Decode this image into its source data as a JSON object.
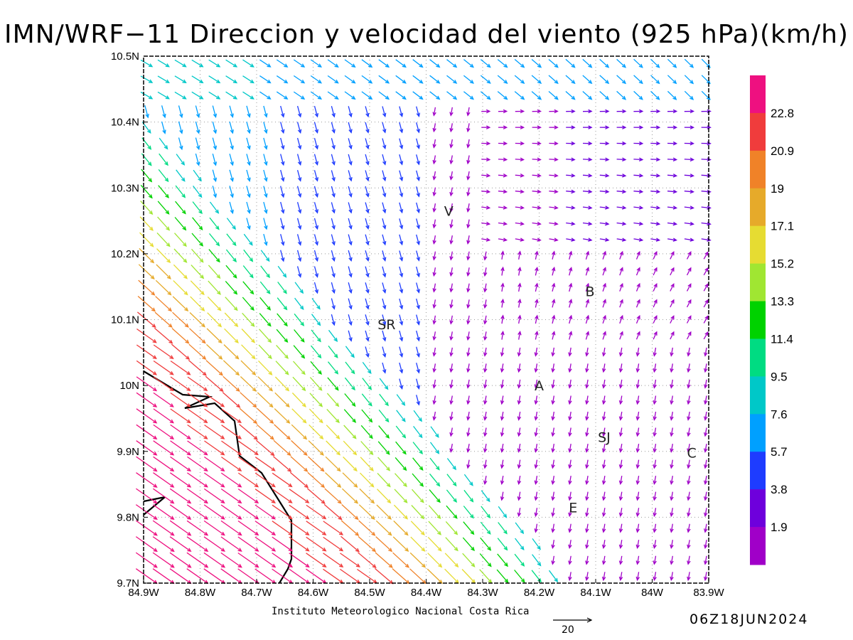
{
  "title": "IMN/WRF−11 Direccion y velocidad del viento (925 hPa)(km/h)",
  "credit": "Instituto Meteorologico Nacional Costa Rica",
  "timestamp": "06Z18JUN2024",
  "reference_vector_label": "20",
  "cities": [
    {
      "label": "V",
      "lon": -84.36,
      "lat": 10.265
    },
    {
      "label": "B",
      "lon": -84.11,
      "lat": 10.143
    },
    {
      "label": "SR",
      "lon": -84.47,
      "lat": 10.093
    },
    {
      "label": "A",
      "lon": -84.2,
      "lat": 10.0
    },
    {
      "label": "SJ",
      "lon": -84.085,
      "lat": 9.922
    },
    {
      "label": "C",
      "lon": -83.93,
      "lat": 9.898
    },
    {
      "label": "E",
      "lon": -84.14,
      "lat": 9.815
    }
  ],
  "colorbar": {
    "labels": [
      "22.8",
      "20.9",
      "19",
      "17.1",
      "15.2",
      "13.3",
      "11.4",
      "9.5",
      "7.6",
      "5.7",
      "3.8",
      "1.9"
    ],
    "colors": [
      "#ee1080",
      "#f03c3c",
      "#f08228",
      "#e6aa2a",
      "#e6dc32",
      "#a0e632",
      "#00d200",
      "#00dc82",
      "#00c8c8",
      "#00a0ff",
      "#1e3cff",
      "#6e00dc",
      "#a000c8"
    ]
  },
  "chart_data": {
    "type": "vector_field",
    "units": "km/h",
    "level": "925 hPa",
    "x_ticks": [
      "84.9W",
      "84.8W",
      "84.7W",
      "84.6W",
      "84.5W",
      "84.4W",
      "84.3W",
      "84.2W",
      "84.1W",
      "84W",
      "83.9W"
    ],
    "y_ticks": [
      "10.5N",
      "10.4N",
      "10.3N",
      "10.2N",
      "10.1N",
      "10N",
      "9.9N",
      "9.8N",
      "9.7N"
    ],
    "xlim": [
      -84.9,
      -83.9
    ],
    "ylim": [
      9.7,
      10.5
    ],
    "grid": true
  }
}
